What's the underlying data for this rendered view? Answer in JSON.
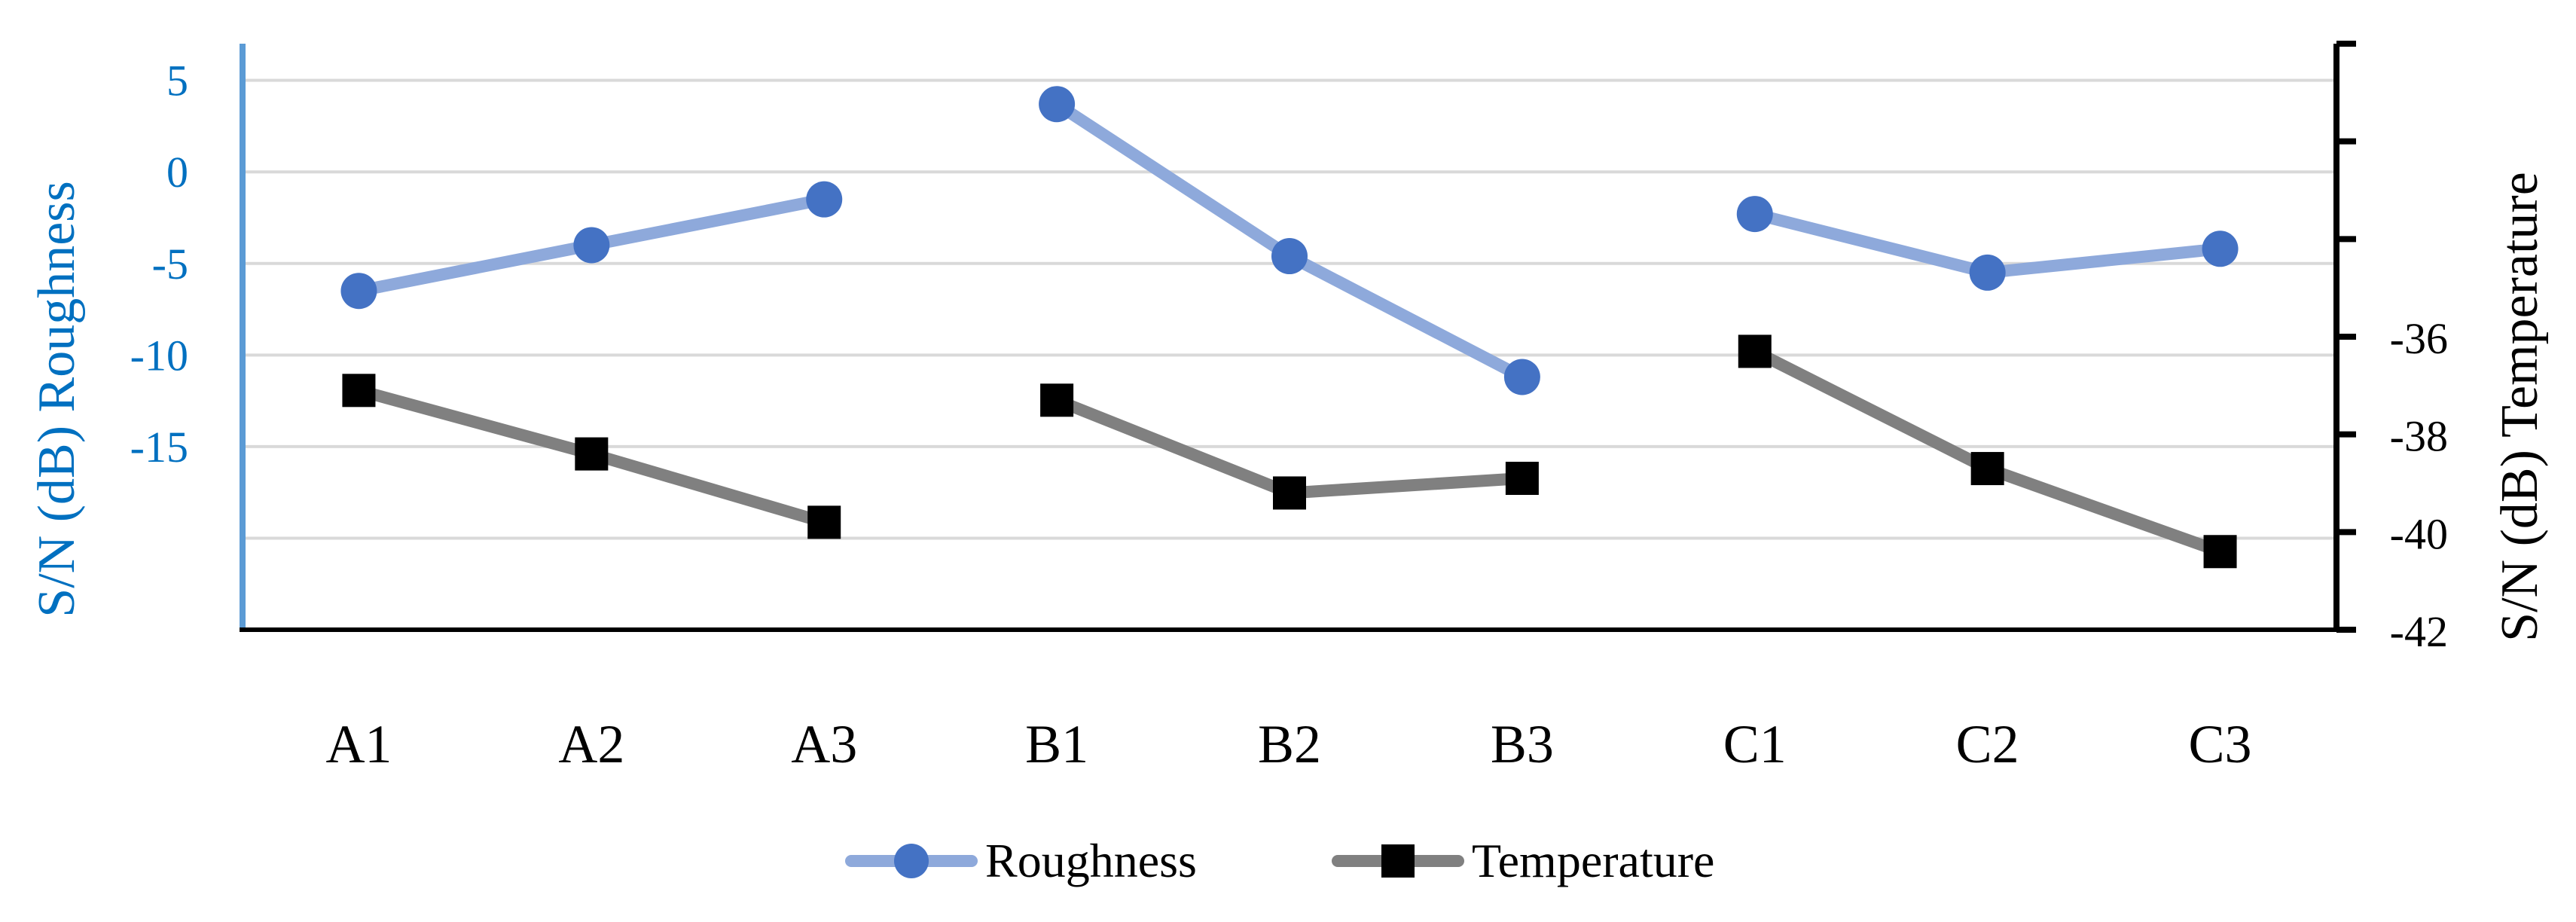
{
  "chart_data": {
    "type": "line",
    "categories": [
      "A1",
      "A2",
      "A3",
      "B1",
      "B2",
      "B3",
      "C1",
      "C2",
      "C3"
    ],
    "y_left": {
      "label": "S/N (dB) Roughness",
      "ticks": [
        "5",
        "0",
        "-5",
        "-10",
        "-15"
      ],
      "tick_values": [
        5,
        0,
        -5,
        -10,
        -15
      ],
      "ylim": [
        -25,
        7
      ],
      "color": "#0070C0"
    },
    "y_right": {
      "label": "S/N (dB) Temperature",
      "ticks": [
        "-36",
        "-38",
        "-40",
        "-42"
      ],
      "tick_values": [
        -36,
        -38,
        -40,
        -42
      ],
      "ylim": [
        -42,
        -30
      ],
      "color": "#000000"
    },
    "series": [
      {
        "name": "Roughness",
        "axis": "left",
        "groups": [
          {
            "x": [
              0,
              1,
              2
            ],
            "values": [
              -6.5,
              -4.0,
              -1.5
            ]
          },
          {
            "x": [
              3,
              4,
              5
            ],
            "values": [
              3.7,
              -4.6,
              -11.2
            ]
          },
          {
            "x": [
              6,
              7,
              8
            ],
            "values": [
              -2.3,
              -5.5,
              -4.2
            ]
          }
        ],
        "line_color": "#8EA9DB",
        "marker": "circle",
        "marker_color": "#4472C4"
      },
      {
        "name": "Temperature",
        "axis": "right",
        "groups": [
          {
            "x": [
              0,
              1,
              2
            ],
            "values": [
              -37.1,
              -38.4,
              -39.8
            ]
          },
          {
            "x": [
              3,
              4,
              5
            ],
            "values": [
              -37.3,
              -39.2,
              -38.9
            ]
          },
          {
            "x": [
              6,
              7,
              8
            ],
            "values": [
              -36.3,
              -38.7,
              -40.4
            ]
          }
        ],
        "line_color": "#808080",
        "marker": "square",
        "marker_color": "#000000"
      }
    ],
    "grid": true,
    "legend_position": "bottom-center"
  }
}
